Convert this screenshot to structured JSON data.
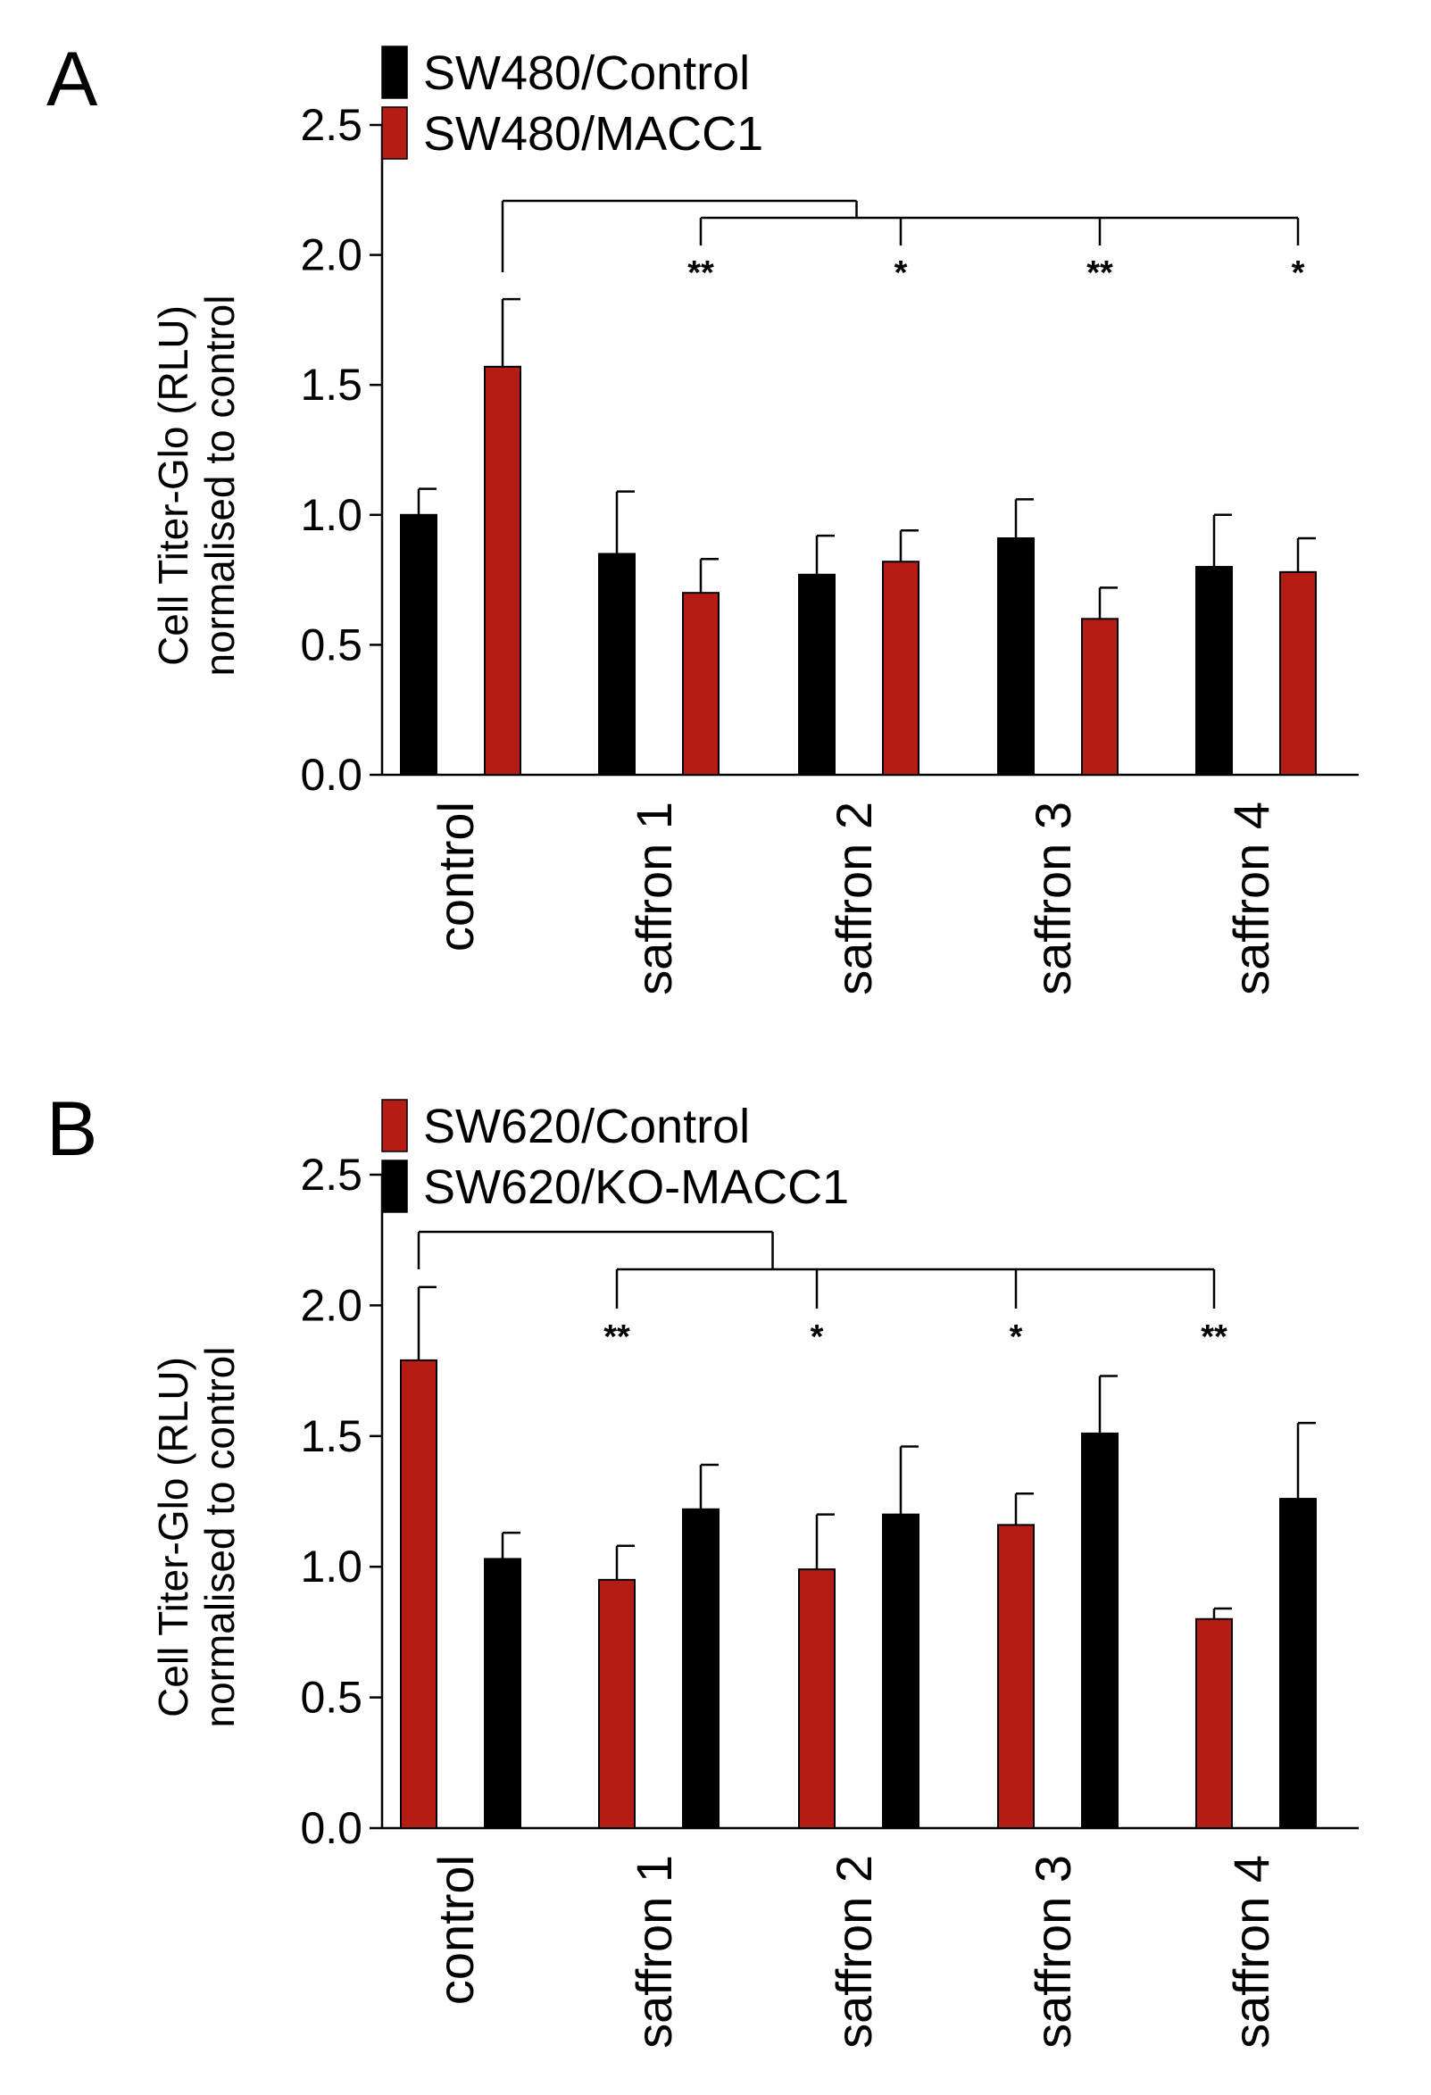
{
  "chart_data": [
    {
      "panel": "A",
      "type": "bar",
      "categories": [
        "control",
        "saffron 1",
        "saffron 2",
        "saffron 3",
        "saffron 4"
      ],
      "series": [
        {
          "name": "SW480/Control",
          "color": "#000000",
          "values": [
            1.0,
            0.85,
            0.77,
            0.91,
            0.8
          ],
          "errors": [
            0.1,
            0.24,
            0.15,
            0.15,
            0.2
          ]
        },
        {
          "name": "SW480/MACC1",
          "color": "#b51c14",
          "values": [
            1.57,
            0.7,
            0.82,
            0.6,
            0.78
          ],
          "errors": [
            0.26,
            0.13,
            0.12,
            0.12,
            0.13
          ]
        }
      ],
      "ylabel": [
        "Cell Titer-Glo (RLU)",
        "normalised to control"
      ],
      "ylim": [
        0,
        2.5
      ],
      "yticks": [
        "0.0",
        "0.5",
        "1.0",
        "1.5",
        "2.0",
        "2.5"
      ],
      "legend_position": "top-left",
      "significance": {
        "compared_series": "SW480/MACC1",
        "reference_category": "control",
        "labels": [
          "**",
          "*",
          "**",
          "*"
        ]
      }
    },
    {
      "panel": "B",
      "type": "bar",
      "categories": [
        "control",
        "saffron 1",
        "saffron 2",
        "saffron 3",
        "saffron 4"
      ],
      "series": [
        {
          "name": "SW620/Control",
          "color": "#b51c14",
          "values": [
            1.79,
            0.95,
            0.99,
            1.16,
            0.8
          ],
          "errors": [
            0.28,
            0.13,
            0.21,
            0.12,
            0.04
          ]
        },
        {
          "name": "SW620/KO-MACC1",
          "color": "#000000",
          "values": [
            1.03,
            1.22,
            1.2,
            1.51,
            1.26
          ],
          "errors": [
            0.1,
            0.17,
            0.26,
            0.22,
            0.29
          ]
        }
      ],
      "ylabel": [
        "Cell Titer-Glo (RLU)",
        "normalised to control"
      ],
      "ylim": [
        0,
        2.5
      ],
      "yticks": [
        "0.0",
        "0.5",
        "1.0",
        "1.5",
        "2.0",
        "2.5"
      ],
      "legend_position": "top-left",
      "significance": {
        "compared_series": "SW620/Control",
        "reference_category": "control",
        "labels": [
          "**",
          "*",
          "*",
          "**"
        ]
      }
    }
  ]
}
